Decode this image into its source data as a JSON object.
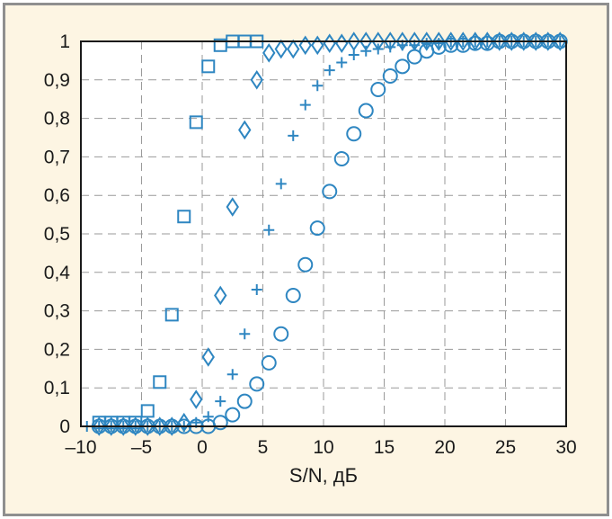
{
  "chart_data": {
    "type": "scatter",
    "title": "",
    "xlabel": "S/N, дБ",
    "ylabel": "",
    "xlim": [
      -10,
      30
    ],
    "ylim": [
      0,
      1
    ],
    "x_ticks": [
      -10,
      -5,
      0,
      5,
      10,
      15,
      20,
      25,
      30
    ],
    "x_tick_labels": [
      "–10",
      "–5",
      "0",
      "5",
      "10",
      "15",
      "20",
      "25",
      "30"
    ],
    "y_ticks": [
      0,
      0.1,
      0.2,
      0.3,
      0.4,
      0.5,
      0.6,
      0.7,
      0.8,
      0.9,
      1
    ],
    "y_tick_labels": [
      "0",
      "0,1",
      "0,2",
      "0,3",
      "0,4",
      "0,5",
      "0,6",
      "0,7",
      "0,8",
      "0,9",
      "1"
    ],
    "grid": true,
    "legend": "none",
    "color": "#2e86c1",
    "series": [
      {
        "name": "square",
        "marker": "square",
        "x": [
          -8.5,
          -7.5,
          -6.5,
          -5.5,
          -4.5,
          -3.5,
          -2.5,
          -1.5,
          -0.5,
          0.5,
          1.5,
          2.5,
          3.5,
          4.5
        ],
        "y": [
          0.01,
          0.01,
          0.01,
          0.01,
          0.04,
          0.115,
          0.29,
          0.545,
          0.79,
          0.935,
          0.99,
          1,
          1,
          1
        ]
      },
      {
        "name": "diamond",
        "marker": "diamond",
        "x": [
          -8.5,
          -7.5,
          -6.5,
          -5.5,
          -4.5,
          -3.5,
          -2.5,
          -1.5,
          -0.5,
          0.5,
          1.5,
          2.5,
          3.5,
          4.5,
          5.5,
          6.5,
          7.5,
          8.5,
          9.5,
          10.5,
          11.5,
          12.5,
          13.5,
          14.5,
          15.5,
          16.5,
          17.5,
          18.5,
          19.5,
          20.5,
          21.5,
          22.5,
          23.5,
          24.5,
          25.5,
          26.5,
          27.5,
          28.5,
          29.5
        ],
        "y": [
          0,
          0,
          0,
          0,
          0,
          0,
          0,
          0.01,
          0.07,
          0.18,
          0.34,
          0.57,
          0.77,
          0.9,
          0.97,
          0.98,
          0.98,
          0.99,
          0.99,
          0.995,
          0.995,
          1,
          1,
          1,
          1,
          1,
          1,
          1,
          1,
          1,
          1,
          1,
          1,
          1,
          1,
          1,
          1,
          1,
          1
        ]
      },
      {
        "name": "plus",
        "marker": "plus",
        "x": [
          -9.5,
          -8.5,
          -7.5,
          -6.5,
          -5.5,
          -4.5,
          -3.5,
          -2.5,
          -1.5,
          -0.5,
          0.5,
          1.5,
          2.5,
          3.5,
          4.5,
          5.5,
          6.5,
          7.5,
          8.5,
          9.5,
          10.5,
          11.5,
          12.5,
          13.5,
          14.5,
          15.5,
          16.5,
          17.5,
          18.5,
          19.5,
          20.5,
          21.5,
          22.5,
          23.5,
          24.5,
          25.5,
          26.5,
          27.5,
          28.5,
          29.5
        ],
        "y": [
          0,
          0,
          0,
          0,
          0,
          0,
          0,
          0,
          0,
          0.01,
          0.025,
          0.065,
          0.135,
          0.24,
          0.355,
          0.51,
          0.63,
          0.755,
          0.835,
          0.885,
          0.925,
          0.945,
          0.965,
          0.975,
          0.98,
          0.985,
          0.99,
          0.99,
          0.995,
          0.995,
          1,
          1,
          1,
          1,
          1,
          1,
          1,
          1,
          1,
          1
        ]
      },
      {
        "name": "circle",
        "marker": "circle",
        "x": [
          -8.5,
          -7.5,
          -6.5,
          -5.5,
          -4.5,
          -3.5,
          -2.5,
          -1.5,
          -0.5,
          0.5,
          1.5,
          2.5,
          3.5,
          4.5,
          5.5,
          6.5,
          7.5,
          8.5,
          9.5,
          10.5,
          11.5,
          12.5,
          13.5,
          14.5,
          15.5,
          16.5,
          17.5,
          18.5,
          19.5,
          20.5,
          21.5,
          22.5,
          23.5,
          24.5,
          25.5,
          26.5,
          27.5,
          28.5,
          29.5
        ],
        "y": [
          0,
          0,
          0,
          0,
          0,
          0,
          0,
          0,
          0,
          0,
          0.01,
          0.03,
          0.065,
          0.11,
          0.165,
          0.24,
          0.34,
          0.42,
          0.515,
          0.61,
          0.695,
          0.76,
          0.82,
          0.875,
          0.91,
          0.935,
          0.96,
          0.975,
          0.985,
          0.99,
          0.99,
          0.995,
          0.995,
          1,
          1,
          1,
          1,
          1,
          1
        ]
      }
    ]
  }
}
